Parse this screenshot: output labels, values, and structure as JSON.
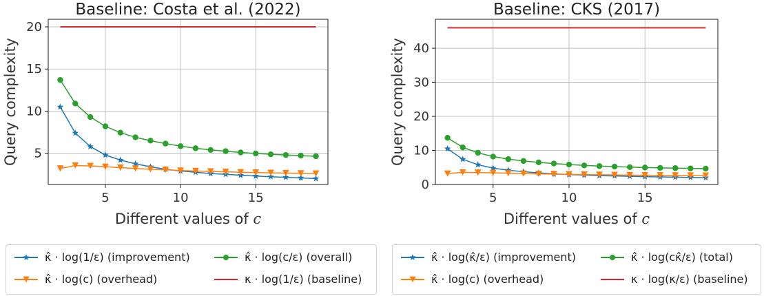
{
  "chart_data": [
    {
      "type": "line",
      "title": "Baseline: Costa et al. (2022)",
      "xlabel": "Different values of c",
      "ylabel": "Query complexity",
      "xlim": [
        1.2,
        19.8
      ],
      "ylim": [
        1.3,
        20.9
      ],
      "xticks": [
        5,
        10,
        15
      ],
      "yticks": [
        5,
        10,
        15,
        20
      ],
      "grid": true,
      "legend_position": "below",
      "x": [
        2,
        3,
        4,
        5,
        6,
        7,
        8,
        9,
        10,
        11,
        12,
        13,
        14,
        15,
        16,
        17,
        18,
        19
      ],
      "series": [
        {
          "name": "κ̂ · log(1/ε) (improvement)",
          "color": "#1f77b4",
          "marker": "star",
          "values": [
            10.5,
            7.4,
            5.8,
            4.8,
            4.2,
            3.75,
            3.4,
            3.1,
            2.9,
            2.75,
            2.6,
            2.5,
            2.4,
            2.3,
            2.22,
            2.15,
            2.08,
            2.0
          ]
        },
        {
          "name": "κ̂ · log(c) (overhead)",
          "color": "#ff7f0e",
          "marker": "triangle-down",
          "values": [
            3.2,
            3.55,
            3.5,
            3.4,
            3.3,
            3.2,
            3.1,
            3.05,
            2.95,
            2.9,
            2.85,
            2.8,
            2.75,
            2.72,
            2.68,
            2.65,
            2.62,
            2.6
          ]
        },
        {
          "name": "κ̂ · log(c/ε) (overall)",
          "color": "#2ca02c",
          "marker": "circle",
          "values": [
            13.7,
            10.9,
            9.3,
            8.2,
            7.45,
            6.9,
            6.5,
            6.15,
            5.85,
            5.6,
            5.4,
            5.25,
            5.1,
            4.98,
            4.88,
            4.8,
            4.72,
            4.65
          ]
        },
        {
          "name": "κ · log(1/ε) (baseline)",
          "color": "#d62728",
          "marker": "none",
          "values": [
            20,
            20,
            20,
            20,
            20,
            20,
            20,
            20,
            20,
            20,
            20,
            20,
            20,
            20,
            20,
            20,
            20,
            20
          ]
        }
      ]
    },
    {
      "type": "line",
      "title": "Baseline: CKS (2017)",
      "xlabel": "Different values of c",
      "ylabel": "Query complexity",
      "xlim": [
        1.2,
        19.8
      ],
      "ylim": [
        0,
        48.5
      ],
      "xticks": [
        5,
        10,
        15
      ],
      "yticks": [
        0,
        10,
        20,
        30,
        40
      ],
      "grid": true,
      "legend_position": "below",
      "x": [
        2,
        3,
        4,
        5,
        6,
        7,
        8,
        9,
        10,
        11,
        12,
        13,
        14,
        15,
        16,
        17,
        18,
        19
      ],
      "series": [
        {
          "name": "κ̂ · log(κ̂/ε) (improvement)",
          "color": "#1f77b4",
          "marker": "star",
          "values": [
            10.5,
            7.4,
            5.8,
            4.8,
            4.2,
            3.75,
            3.4,
            3.1,
            2.9,
            2.75,
            2.6,
            2.5,
            2.4,
            2.3,
            2.22,
            2.15,
            2.08,
            2.0
          ]
        },
        {
          "name": "κ̂ · log(c) (overhead)",
          "color": "#ff7f0e",
          "marker": "triangle-down",
          "values": [
            3.2,
            3.55,
            3.5,
            3.4,
            3.3,
            3.2,
            3.1,
            3.05,
            2.95,
            2.9,
            2.85,
            2.8,
            2.75,
            2.72,
            2.68,
            2.65,
            2.62,
            2.6
          ]
        },
        {
          "name": "κ̂ · log(cκ̂/ε) (total)",
          "color": "#2ca02c",
          "marker": "circle",
          "values": [
            13.7,
            10.9,
            9.3,
            8.2,
            7.45,
            6.9,
            6.5,
            6.15,
            5.85,
            5.6,
            5.4,
            5.25,
            5.1,
            4.98,
            4.88,
            4.8,
            4.72,
            4.65
          ]
        },
        {
          "name": "κ · log(κ/ε) (baseline)",
          "color": "#d62728",
          "marker": "none",
          "values": [
            46,
            46,
            46,
            46,
            46,
            46,
            46,
            46,
            46,
            46,
            46,
            46,
            46,
            46,
            46,
            46,
            46,
            46
          ]
        }
      ]
    }
  ],
  "legend_order": [
    0,
    2,
    1,
    3
  ]
}
